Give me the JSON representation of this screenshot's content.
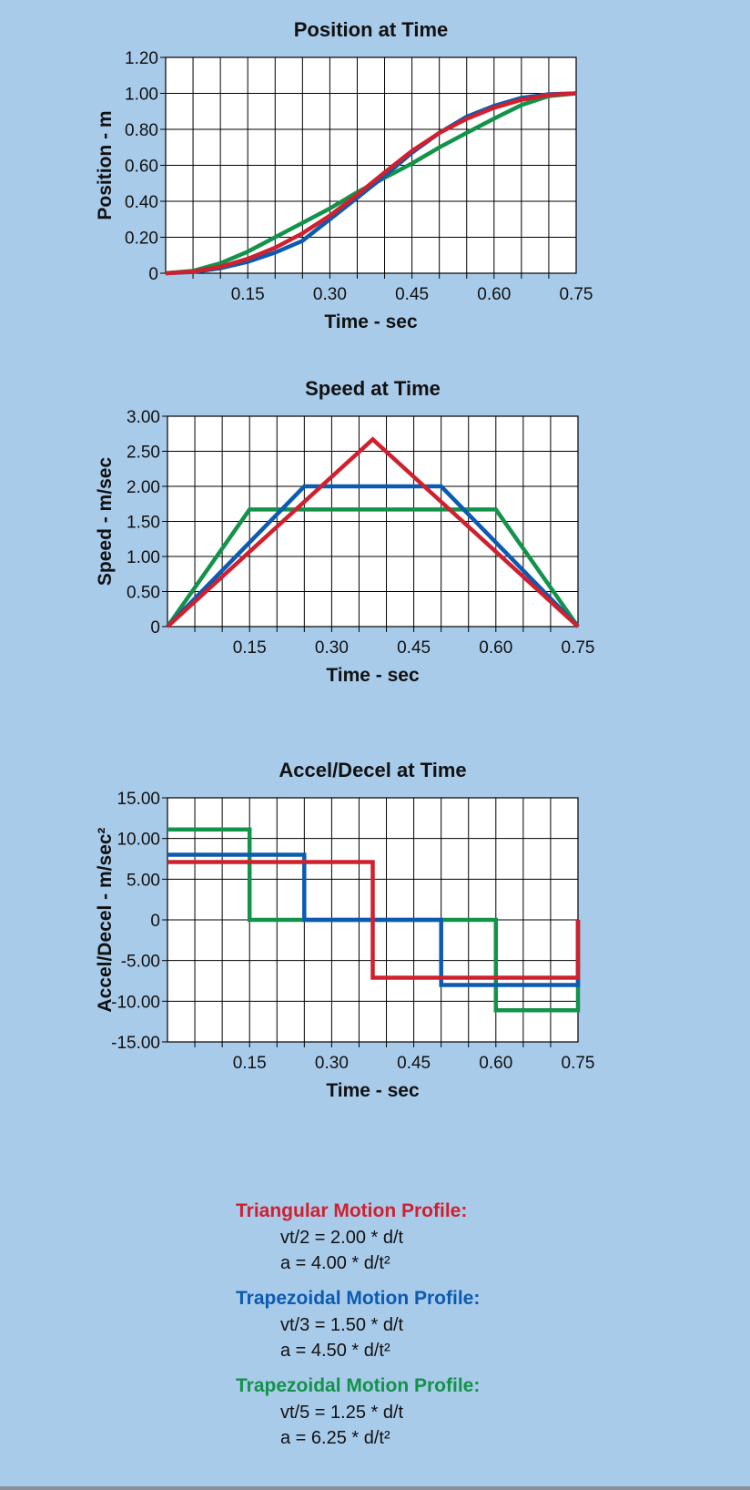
{
  "colors": {
    "background": "#a9cbea",
    "triangular": "#d0202e",
    "trapezoidal_blue": "#0c5bb0",
    "trapezoidal_green": "#13924a"
  },
  "chart_data": [
    {
      "type": "line",
      "title": "Position at Time",
      "xlabel": "Time - sec",
      "ylabel": "Position - m",
      "xlim": [
        0,
        0.75
      ],
      "ylim": [
        0,
        1.2
      ],
      "xticks": [
        0.15,
        0.3,
        0.45,
        0.6,
        0.75
      ],
      "xtick_labels": [
        "0.15",
        "0.30",
        "0.45",
        "0.60",
        "0.75"
      ],
      "yticks": [
        0,
        0.2,
        0.4,
        0.6,
        0.8,
        1.0,
        1.2
      ],
      "ytick_labels": [
        "0",
        "0.20",
        "0.40",
        "0.60",
        "0.80",
        "1.00",
        "1.20"
      ],
      "grid": true,
      "series": [
        {
          "color_key": "trapezoidal_green",
          "x": [
            0,
            0.05,
            0.1,
            0.15,
            0.2,
            0.25,
            0.3,
            0.35,
            0.4,
            0.45,
            0.5,
            0.55,
            0.6,
            0.65,
            0.7,
            0.75
          ],
          "y": [
            0,
            0.013,
            0.055,
            0.12,
            0.2,
            0.28,
            0.36,
            0.45,
            0.53,
            0.61,
            0.7,
            0.78,
            0.86,
            0.935,
            0.985,
            1.0
          ]
        },
        {
          "color_key": "trapezoidal_blue",
          "x": [
            0,
            0.05,
            0.1,
            0.15,
            0.2,
            0.25,
            0.3,
            0.35,
            0.4,
            0.45,
            0.5,
            0.55,
            0.6,
            0.65,
            0.7,
            0.75
          ],
          "y": [
            0,
            0.007,
            0.028,
            0.064,
            0.115,
            0.18,
            0.3,
            0.42,
            0.54,
            0.67,
            0.78,
            0.87,
            0.93,
            0.975,
            0.995,
            1.0
          ]
        },
        {
          "color_key": "triangular",
          "x": [
            0,
            0.05,
            0.1,
            0.15,
            0.2,
            0.25,
            0.3,
            0.35,
            0.4,
            0.45,
            0.5,
            0.55,
            0.6,
            0.65,
            0.7,
            0.75
          ],
          "y": [
            0,
            0.009,
            0.036,
            0.08,
            0.142,
            0.222,
            0.32,
            0.436,
            0.56,
            0.68,
            0.78,
            0.858,
            0.92,
            0.964,
            0.991,
            1.0
          ]
        }
      ]
    },
    {
      "type": "line",
      "title": "Speed at Time",
      "xlabel": "Time - sec",
      "ylabel": "Speed - m/sec",
      "xlim": [
        0,
        0.75
      ],
      "ylim": [
        0,
        3.0
      ],
      "xticks": [
        0.15,
        0.3,
        0.45,
        0.6,
        0.75
      ],
      "xtick_labels": [
        "0.15",
        "0.30",
        "0.45",
        "0.60",
        "0.75"
      ],
      "yticks": [
        0,
        0.5,
        1.0,
        1.5,
        2.0,
        2.5,
        3.0
      ],
      "ytick_labels": [
        "0",
        "0.50",
        "1.00",
        "1.50",
        "2.00",
        "2.50",
        "3.00"
      ],
      "grid": true,
      "series": [
        {
          "color_key": "trapezoidal_green",
          "x": [
            0,
            0.15,
            0.6,
            0.75
          ],
          "y": [
            0,
            1.67,
            1.67,
            0
          ]
        },
        {
          "color_key": "trapezoidal_blue",
          "x": [
            0,
            0.25,
            0.5,
            0.75
          ],
          "y": [
            0,
            2.0,
            2.0,
            0
          ]
        },
        {
          "color_key": "triangular",
          "x": [
            0,
            0.375,
            0.75
          ],
          "y": [
            0,
            2.67,
            0
          ]
        }
      ]
    },
    {
      "type": "line",
      "title": "Accel/Decel at Time",
      "xlabel": "Time - sec",
      "ylabel": "Accel/Decel - m/sec²",
      "xlim": [
        0,
        0.75
      ],
      "ylim": [
        -15,
        15
      ],
      "xticks": [
        0.15,
        0.3,
        0.45,
        0.6,
        0.75
      ],
      "xtick_labels": [
        "0.15",
        "0.30",
        "0.45",
        "0.60",
        "0.75"
      ],
      "yticks": [
        -15,
        -10,
        -5,
        0,
        5,
        10,
        15
      ],
      "ytick_labels": [
        "-15.00",
        "-10.00",
        "-5.00",
        "0",
        "5.00",
        "10.00",
        "15.00"
      ],
      "grid": true,
      "series": [
        {
          "color_key": "trapezoidal_green",
          "x": [
            0,
            0.15,
            0.15,
            0.6,
            0.6,
            0.75,
            0.75
          ],
          "y": [
            11.11,
            11.11,
            0,
            0,
            -11.11,
            -11.11,
            0
          ]
        },
        {
          "color_key": "trapezoidal_blue",
          "x": [
            0,
            0.25,
            0.25,
            0.5,
            0.5,
            0.75,
            0.75
          ],
          "y": [
            8.0,
            8.0,
            0,
            0,
            -8.0,
            -8.0,
            0
          ]
        },
        {
          "color_key": "triangular",
          "x": [
            0,
            0.375,
            0.375,
            0.75,
            0.75
          ],
          "y": [
            7.11,
            7.11,
            -7.11,
            -7.11,
            0
          ]
        }
      ]
    }
  ],
  "legend": [
    {
      "title": "Triangular Motion Profile:",
      "color_key": "triangular",
      "line1": "vt/2 = 2.00 * d/t",
      "line2": "a = 4.00 * d/t²"
    },
    {
      "title": "Trapezoidal Motion Profile:",
      "color_key": "trapezoidal_blue",
      "line1": "vt/3 = 1.50 * d/t",
      "line2": "a = 4.50 * d/t²"
    },
    {
      "title": "Trapezoidal Motion Profile:",
      "color_key": "trapezoidal_green",
      "line1": "vt/5 = 1.25 * d/t",
      "line2": "a = 6.25 * d/t²"
    }
  ]
}
